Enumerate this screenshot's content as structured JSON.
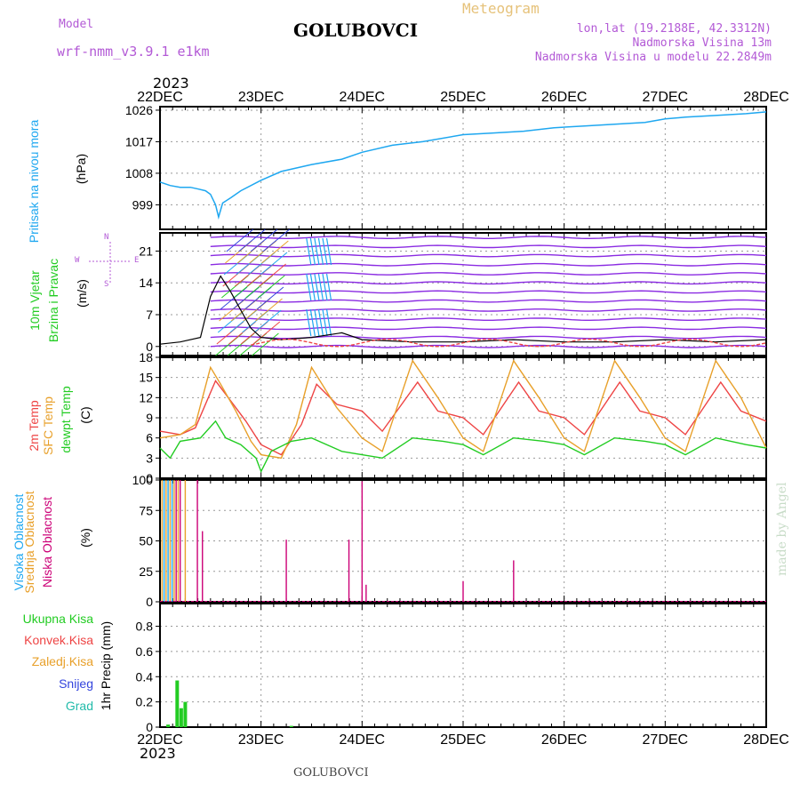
{
  "header": {
    "model_label": "Model",
    "model_name": "wrf-nmm_v3.9.1 e1km",
    "station": "GOLUBOVCI",
    "meteogram_label": "Meteogram",
    "lonlat": "lon,lat (19.2188E, 42.3312N)",
    "altitude": "Nadmorska Visina 13m",
    "model_altitude": "Nadmorska Visina u modelu 22.2849m",
    "year_top": "2023",
    "year_bottom": "2023",
    "footer_station": "GOLUBOVCI",
    "watermark": "made by Angel"
  },
  "colors": {
    "purple": "#b35ad6",
    "gold": "#e6c27a",
    "pressure": "#1ea7f0",
    "green": "#22cc22",
    "red": "#ee4444",
    "orange": "#e8a02a",
    "magenta": "#cc0077",
    "blue": "#3344dd",
    "cyan": "#22bbaa",
    "windpurple": "#8a2be2"
  },
  "panel_labels": {
    "pressure": [
      "Pritisak na nivou mora",
      "(hPa)"
    ],
    "wind": [
      "10m Vjetar",
      "Brzina i Pravac",
      "(m/s)"
    ],
    "compass": [
      "N",
      "W",
      "E",
      "S"
    ],
    "temp": [
      "2m Temp",
      "SFC Temp",
      "dewpt Temp",
      "(C)"
    ],
    "cloud": [
      "Visoka Oblacnost",
      "Srednja Oblacnost",
      "Niska Oblacnost",
      "(%)"
    ],
    "precip": [
      "Ukupna Kisa",
      "Konvek.Kisa",
      "Zaledj.Kisa",
      "Snijeg",
      "Grad",
      "1hr Precip (mm)"
    ]
  },
  "chart_data": [
    {
      "type": "line",
      "panel": "pressure",
      "x_ticks": [
        "22DEC",
        "23DEC",
        "24DEC",
        "25DEC",
        "26DEC",
        "27DEC",
        "28DEC"
      ],
      "ylabel": "(hPa)",
      "yticks": [
        999,
        1008,
        1017,
        1026
      ],
      "ylim": [
        992,
        1027
      ],
      "xlim": [
        0,
        6
      ],
      "series": [
        {
          "name": "Pritisak na nivou mora",
          "x": [
            0,
            0.1,
            0.2,
            0.3,
            0.38,
            0.45,
            0.5,
            0.55,
            0.58,
            0.62,
            0.7,
            0.8,
            1.0,
            1.2,
            1.5,
            1.8,
            2.0,
            2.3,
            2.6,
            3.0,
            3.3,
            3.6,
            3.9,
            4.2,
            4.5,
            4.8,
            5.0,
            5.2,
            5.5,
            5.8,
            6.0
          ],
          "y": [
            1005.5,
            1004.5,
            1004,
            1004,
            1003.5,
            1003,
            1002,
            999,
            995.5,
            999.5,
            1001,
            1003,
            1006,
            1008.5,
            1010.5,
            1012,
            1014,
            1016,
            1017,
            1019,
            1019.5,
            1020,
            1021,
            1021.5,
            1022,
            1022.5,
            1023.5,
            1024,
            1024.5,
            1025,
            1025.5
          ]
        }
      ]
    },
    {
      "type": "line",
      "panel": "wind",
      "ylabel": "(m/s)",
      "yticks": [
        0,
        7,
        14,
        21
      ],
      "ylim": [
        -2,
        25
      ],
      "xlim": [
        0,
        6
      ],
      "series": [
        {
          "name": "10m Vjetar",
          "x": [
            0,
            0.2,
            0.4,
            0.5,
            0.6,
            0.7,
            0.8,
            0.9,
            1.0,
            1.2,
            1.5,
            1.8,
            2.0,
            2.5,
            3.0,
            3.5,
            4.0,
            4.5,
            5.0,
            5.5,
            6.0
          ],
          "y": [
            0.5,
            1.0,
            2.0,
            11.0,
            15.5,
            12.0,
            8.0,
            4.0,
            2.0,
            1.5,
            2.0,
            3.0,
            1.5,
            1.0,
            1.0,
            1.5,
            1.0,
            1.0,
            1.5,
            1.0,
            1.5
          ]
        }
      ]
    },
    {
      "type": "line",
      "panel": "temperature",
      "ylabel": "(C)",
      "yticks": [
        0,
        3,
        6,
        9,
        12,
        15,
        18
      ],
      "ylim": [
        0,
        18
      ],
      "xlim": [
        0,
        6
      ],
      "series": [
        {
          "name": "2m Temp",
          "x": [
            0,
            0.2,
            0.35,
            0.55,
            0.7,
            0.85,
            1.0,
            1.2,
            1.4,
            1.55,
            1.75,
            2.0,
            2.2,
            2.55,
            2.75,
            3.0,
            3.2,
            3.55,
            3.75,
            4.0,
            4.2,
            4.55,
            4.75,
            5.0,
            5.2,
            5.55,
            5.75,
            6.0
          ],
          "y": [
            7.0,
            6.5,
            7.5,
            14.5,
            11.5,
            8.5,
            5.0,
            3.5,
            8.0,
            14.0,
            11.0,
            10.0,
            7.0,
            14.3,
            10.0,
            9.0,
            6.5,
            14.3,
            10.0,
            9.0,
            6.5,
            14.3,
            10.0,
            9.0,
            6.5,
            14.3,
            10.0,
            8.5
          ]
        },
        {
          "name": "SFC Temp",
          "x": [
            0,
            0.2,
            0.35,
            0.5,
            0.6,
            0.75,
            0.9,
            1.0,
            1.2,
            1.35,
            1.5,
            1.75,
            2.0,
            2.2,
            2.5,
            2.75,
            3.0,
            3.2,
            3.5,
            3.75,
            4.0,
            4.2,
            4.5,
            4.75,
            5.0,
            5.2,
            5.5,
            5.75,
            6.0
          ],
          "y": [
            6.0,
            6.5,
            8.0,
            16.5,
            14.0,
            10.0,
            5.5,
            3.5,
            3.0,
            8.0,
            16.5,
            10.5,
            6.0,
            4.0,
            17.5,
            12.0,
            6.0,
            4.0,
            17.5,
            12.0,
            6.0,
            4.0,
            17.5,
            12.0,
            6.0,
            4.0,
            17.5,
            12.0,
            4.5
          ]
        },
        {
          "name": "dewpt Temp",
          "x": [
            0,
            0.1,
            0.2,
            0.4,
            0.55,
            0.65,
            0.8,
            0.95,
            1.0,
            1.1,
            1.3,
            1.5,
            1.8,
            2.0,
            2.2,
            2.5,
            2.8,
            3.0,
            3.2,
            3.5,
            3.8,
            4.0,
            4.2,
            4.5,
            4.8,
            5.0,
            5.2,
            5.5,
            5.8,
            6.0
          ],
          "y": [
            4.5,
            3.0,
            5.5,
            6.0,
            8.5,
            6.0,
            5.0,
            3.0,
            1.0,
            4.0,
            5.5,
            6.0,
            4.0,
            3.5,
            3.0,
            6.0,
            5.5,
            5.0,
            3.5,
            6.0,
            5.5,
            5.0,
            3.5,
            6.0,
            5.5,
            5.0,
            3.5,
            6.0,
            5.0,
            4.5
          ]
        }
      ]
    },
    {
      "type": "bar",
      "panel": "cloud",
      "ylabel": "(%)",
      "yticks": [
        0,
        25,
        50,
        75,
        100
      ],
      "ylim": [
        0,
        100
      ],
      "xlim": [
        0,
        6
      ],
      "series": [
        {
          "name": "Visoka Oblacnost",
          "x": [
            0.04,
            0.08,
            0.12
          ],
          "values": [
            100,
            100,
            100
          ]
        },
        {
          "name": "Srednja Oblacnost",
          "x": [
            0.02,
            0.06,
            0.1,
            0.14,
            0.18,
            0.25
          ],
          "values": [
            100,
            100,
            100,
            100,
            100,
            100
          ]
        },
        {
          "name": "Niska Oblacnost",
          "x": [
            0.16,
            0.2,
            0.37,
            0.42,
            1.25,
            1.87,
            2.0,
            2.04,
            3.0,
            3.5
          ],
          "values": [
            100,
            100,
            100,
            58,
            51,
            51,
            99,
            14,
            17,
            34
          ]
        }
      ]
    },
    {
      "type": "bar",
      "panel": "precip",
      "ylabel": "1hr Precip (mm)",
      "yticks": [
        0,
        0.2,
        0.4,
        0.6,
        0.8
      ],
      "ylim": [
        0,
        0.98
      ],
      "xlim": [
        0,
        6
      ],
      "series": [
        {
          "name": "Ukupna Kisa",
          "x": [
            0.08,
            0.17,
            0.21,
            0.25,
            1.3
          ],
          "values": [
            0.02,
            0.37,
            0.15,
            0.2,
            0.01
          ]
        }
      ]
    }
  ]
}
